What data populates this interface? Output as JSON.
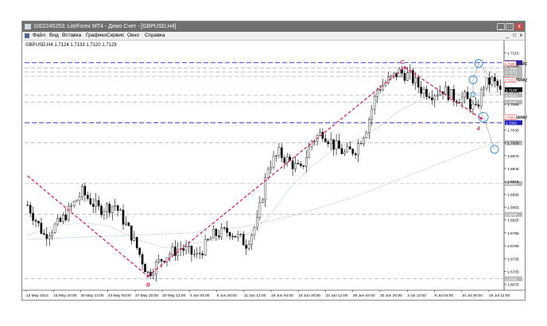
{
  "window": {
    "title": "1002245253: LiteForex MT4 - Демо Счет - [GBPUSD,H4]",
    "min_glyph": "_",
    "max_glyph": "□",
    "close_glyph": "x"
  },
  "menu": {
    "items": [
      "Файл",
      "Вид",
      "Вставка",
      "Графики",
      "Сервис",
      "Окно",
      "Справка"
    ],
    "mdi_min": "_",
    "mdi_max": "□",
    "mdi_close": "x"
  },
  "chart_data": {
    "type": "candlestick",
    "symbol_info": "GBPUSD,H4  1.7124 1.7133 1.7120 1.7129",
    "x_tick_labels": [
      "13 May 2014",
      "15 May 20:00",
      "20 May 12:00",
      "23 May 04:00",
      "27 May 20:00",
      "30 May 12:00",
      "4 Jun 04:00",
      "6 Jun 20:00",
      "11 Jun 12:00",
      "16 Jun 04:00",
      "18 Jun 20:00",
      "23 Jun 12:00",
      "26 Jun 04:00",
      "30 Jun 20:00",
      "3 Jul 12:00",
      "8 Jul 04:00",
      "10 Jul 20:00",
      "15 Jul 12:00"
    ],
    "y_range": [
      1.6665,
      1.7225
    ],
    "y_ticks": [
      1.7215,
      1.7185,
      1.7155,
      1.7125,
      1.7095,
      1.7065,
      1.7035,
      1.7005,
      1.6975,
      1.6945,
      1.6915,
      1.6885,
      1.6855,
      1.6825,
      1.6795,
      1.6765,
      1.6735,
      1.6705,
      1.6675
    ],
    "y_tick_labels": [
      "1.7215",
      "1.7185",
      "1.7155",
      "1.7125",
      "1.7095",
      "1.7065",
      "1.7035",
      "1.7005",
      "1.6975",
      "1.6945",
      "1.6915",
      "1.6885",
      "1.6855",
      "1.6825",
      "1.6795",
      "1.6765",
      "1.6735",
      "1.6705",
      "1.6675"
    ],
    "current_price": 1.7129,
    "current_price_label": "1.7129",
    "horizontal_levels": [
      {
        "price": 1.7192,
        "style": "dash-blue",
        "label": "1.7192"
      },
      {
        "price": 1.718,
        "style": "dash-gray",
        "label": "1.7180"
      },
      {
        "price": 1.717,
        "style": "dash-gray",
        "label": "1.7170"
      },
      {
        "price": 1.716,
        "style": "dash-gray",
        "label": "1.7160"
      },
      {
        "price": 1.7116,
        "style": "dash-gray",
        "label": "1.7116"
      },
      {
        "price": 1.71,
        "style": "dash-gray",
        "label": "1.7100"
      },
      {
        "price": 1.7052,
        "style": "dash-blue",
        "label": "1.7052"
      },
      {
        "price": 1.7005,
        "style": "dash-gray",
        "label": "1.7005"
      },
      {
        "price": 1.691,
        "style": "dash-gray",
        "label": "1.6910"
      },
      {
        "price": 1.6838,
        "style": "dash-gray",
        "label": "1.6838"
      },
      {
        "price": 1.6688,
        "style": "dash-gray",
        "label": "1.6688"
      }
    ],
    "wave_points": [
      {
        "bar": 0,
        "price": 1.6928
      },
      {
        "bar": 44,
        "price": 1.6694
      },
      {
        "bar": 138,
        "price": 1.7181
      },
      {
        "bar": 166,
        "price": 1.7062
      }
    ],
    "wave_labels": [
      {
        "text": "B",
        "bar": 44,
        "price": 1.6675
      },
      {
        "text": "C",
        "bar": 137,
        "price": 1.7194
      },
      {
        "text": "4",
        "bar": 165,
        "price": 1.704
      }
    ],
    "target_labels": [
      {
        "text": "МФ1",
        "price": 1.719,
        "box": "1.7190"
      },
      {
        "text": "МФ2",
        "price": 1.7152,
        "box": "1.7152"
      },
      {
        "text": "МФ2",
        "price": 1.7065,
        "box": "1.7065"
      }
    ],
    "bars": 174,
    "anchors": [
      [
        0,
        1.686
      ],
      [
        6,
        1.679
      ],
      [
        12,
        1.682
      ],
      [
        20,
        1.689
      ],
      [
        26,
        1.685
      ],
      [
        32,
        1.686
      ],
      [
        38,
        1.679
      ],
      [
        44,
        1.67
      ],
      [
        50,
        1.674
      ],
      [
        56,
        1.676
      ],
      [
        62,
        1.674
      ],
      [
        68,
        1.679
      ],
      [
        74,
        1.68
      ],
      [
        80,
        1.677
      ],
      [
        84,
        1.682
      ],
      [
        88,
        1.695
      ],
      [
        92,
        1.698
      ],
      [
        96,
        1.696
      ],
      [
        100,
        1.694
      ],
      [
        104,
        1.701
      ],
      [
        108,
        1.703
      ],
      [
        112,
        1.7
      ],
      [
        116,
        1.698
      ],
      [
        120,
        1.699
      ],
      [
        124,
        1.704
      ],
      [
        128,
        1.713
      ],
      [
        132,
        1.715
      ],
      [
        136,
        1.717
      ],
      [
        140,
        1.716
      ],
      [
        144,
        1.713
      ],
      [
        148,
        1.712
      ],
      [
        152,
        1.713
      ],
      [
        156,
        1.711
      ],
      [
        160,
        1.711
      ],
      [
        164,
        1.708
      ],
      [
        167,
        1.714
      ],
      [
        170,
        1.715
      ],
      [
        173,
        1.7129
      ]
    ],
    "moving_averages": [
      {
        "name": "",
        "anchors": [
          [
            0,
            1.679
          ],
          [
            10,
            1.681
          ],
          [
            20,
            1.682
          ],
          [
            30,
            1.681
          ],
          [
            40,
            1.678
          ],
          [
            50,
            1.676
          ],
          [
            60,
            1.677
          ],
          [
            70,
            1.678
          ],
          [
            80,
            1.679
          ],
          [
            88,
            1.683
          ],
          [
            96,
            1.69
          ],
          [
            104,
            1.695
          ],
          [
            112,
            1.699
          ],
          [
            120,
            1.701
          ],
          [
            128,
            1.704
          ],
          [
            136,
            1.708
          ],
          [
            144,
            1.7105
          ],
          [
            152,
            1.7115
          ],
          [
            160,
            1.712
          ],
          [
            173,
            1.7122
          ]
        ]
      },
      {
        "name": "",
        "anchors": [
          [
            0,
            1.678
          ],
          [
            20,
            1.6785
          ],
          [
            40,
            1.679
          ],
          [
            60,
            1.6795
          ],
          [
            80,
            1.681
          ],
          [
            100,
            1.684
          ],
          [
            120,
            1.688
          ],
          [
            140,
            1.693
          ],
          [
            160,
            1.698
          ],
          [
            173,
            1.701
          ]
        ]
      }
    ],
    "grid": false,
    "colors": {
      "candle": "#000000",
      "wave": "#e0206a",
      "level_blue": "#2020c0",
      "level_gray": "#a0a0a0",
      "ma": "#8ab0d8",
      "target_circle": "#2a8ad8",
      "current_price_bg": "#000000"
    }
  }
}
